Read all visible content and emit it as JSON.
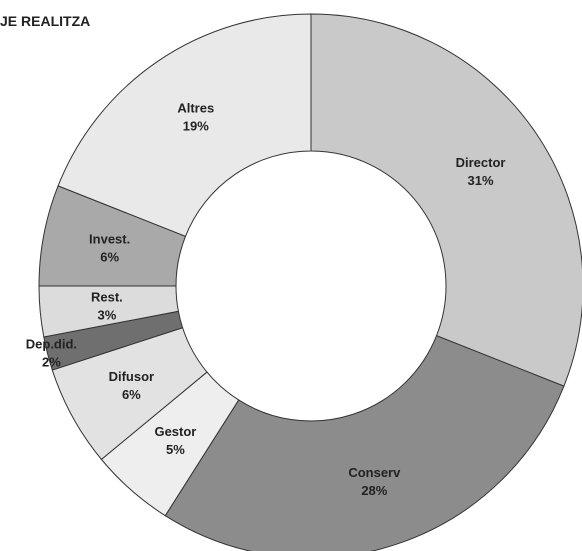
{
  "chart_data": {
    "type": "donut",
    "title": "JE REALITZA",
    "categories": [
      "Director",
      "Conserv",
      "Gestor",
      "Difusor",
      "Dep.did.",
      "Rest.",
      "Invest.",
      "Altres"
    ],
    "values": [
      31,
      28,
      5,
      6,
      2,
      3,
      6,
      19
    ],
    "value_labels": [
      "31%",
      "28%",
      "5%",
      "6%",
      "2%",
      "3%",
      "6%",
      "19%"
    ],
    "colors": [
      "#c9c9c9",
      "#8c8c8c",
      "#eeeeee",
      "#e2e2e2",
      "#6f6f6f",
      "#dcdcdc",
      "#a9a9a9",
      "#e9e9e9"
    ]
  }
}
